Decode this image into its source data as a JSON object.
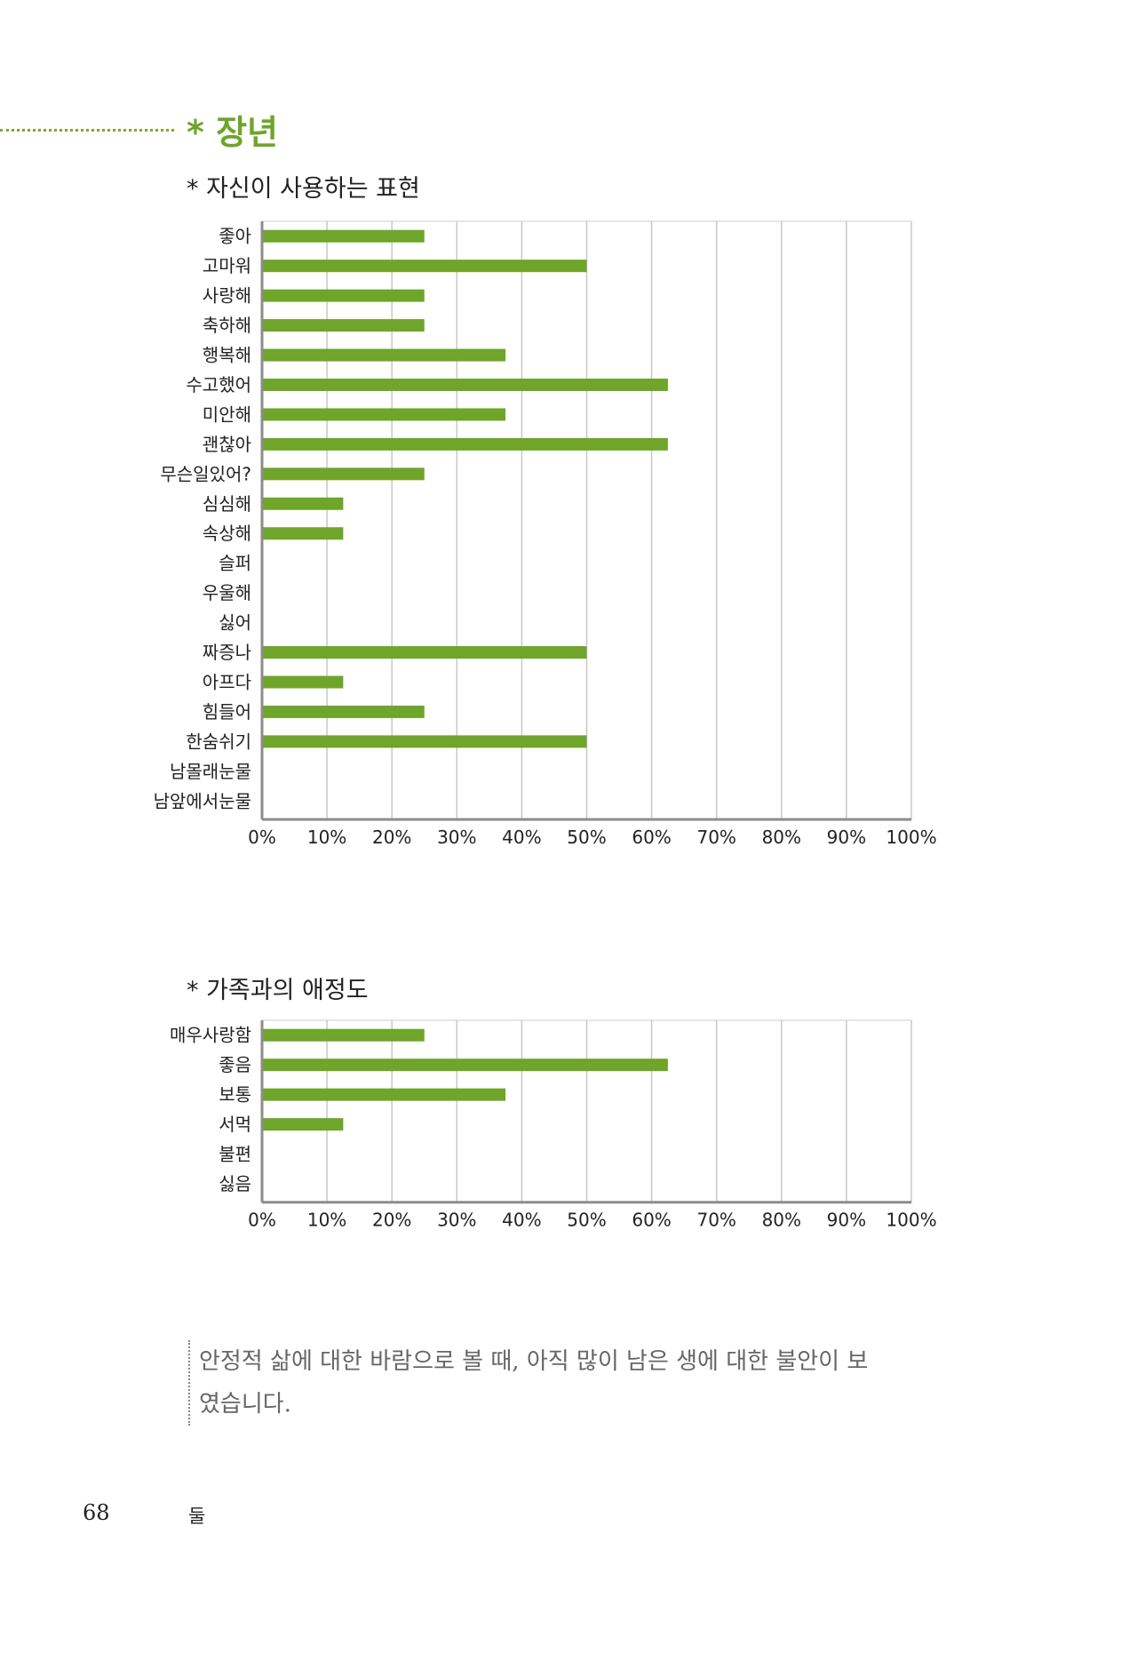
{
  "section_title": "* 장년",
  "charts": [
    {
      "heading": "* 자신이 사용하는 표현",
      "chart_data": {
        "type": "bar",
        "orientation": "horizontal",
        "categories": [
          "좋아",
          "고마워",
          "사랑해",
          "축하해",
          "행복해",
          "수고했어",
          "미안해",
          "괜찮아",
          "무슨일있어?",
          "심심해",
          "속상해",
          "슬퍼",
          "우울해",
          "싫어",
          "짜증나",
          "아프다",
          "힘들어",
          "한숨쉬기",
          "남몰래눈물",
          "남앞에서눈물"
        ],
        "values": [
          25,
          50,
          25,
          25,
          37.5,
          62.5,
          37.5,
          62.5,
          25,
          12.5,
          12.5,
          0,
          0,
          0,
          50,
          12.5,
          25,
          50,
          0,
          0
        ],
        "xlim": [
          0,
          100
        ],
        "x_ticks": [
          "0%",
          "10%",
          "20%",
          "30%",
          "40%",
          "50%",
          "60%",
          "70%",
          "80%",
          "90%",
          "100%"
        ],
        "grid": true,
        "bar_color": "#6ea52a"
      }
    },
    {
      "heading": "* 가족과의 애정도",
      "chart_data": {
        "type": "bar",
        "orientation": "horizontal",
        "categories": [
          "매우사랑함",
          "좋음",
          "보통",
          "서먹",
          "불편",
          "싫음"
        ],
        "values": [
          25,
          62.5,
          37.5,
          12.5,
          0,
          0
        ],
        "xlim": [
          0,
          100
        ],
        "x_ticks": [
          "0%",
          "10%",
          "20%",
          "30%",
          "40%",
          "50%",
          "60%",
          "70%",
          "80%",
          "90%",
          "100%"
        ],
        "grid": true,
        "bar_color": "#6ea52a"
      }
    }
  ],
  "note_line1": "안정적 삶에 대한 바람으로 볼 때, 아직 많이 남은 생에 대한 불안이 보",
  "note_line2": "였습니다.",
  "page_number": "68",
  "page_section": "둘"
}
